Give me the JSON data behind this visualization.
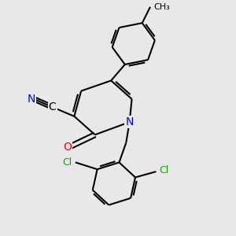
{
  "bg_color": "#e8e8e8",
  "bond_color": "#000000",
  "bond_width": 1.5,
  "atom_colors": {
    "N": "#0000ff",
    "O": "#ff0000",
    "Cl": "#00aa00",
    "C_label": "#000000"
  },
  "font_size_atoms": 10,
  "font_size_cl": 9,
  "font_size_ch3": 8
}
